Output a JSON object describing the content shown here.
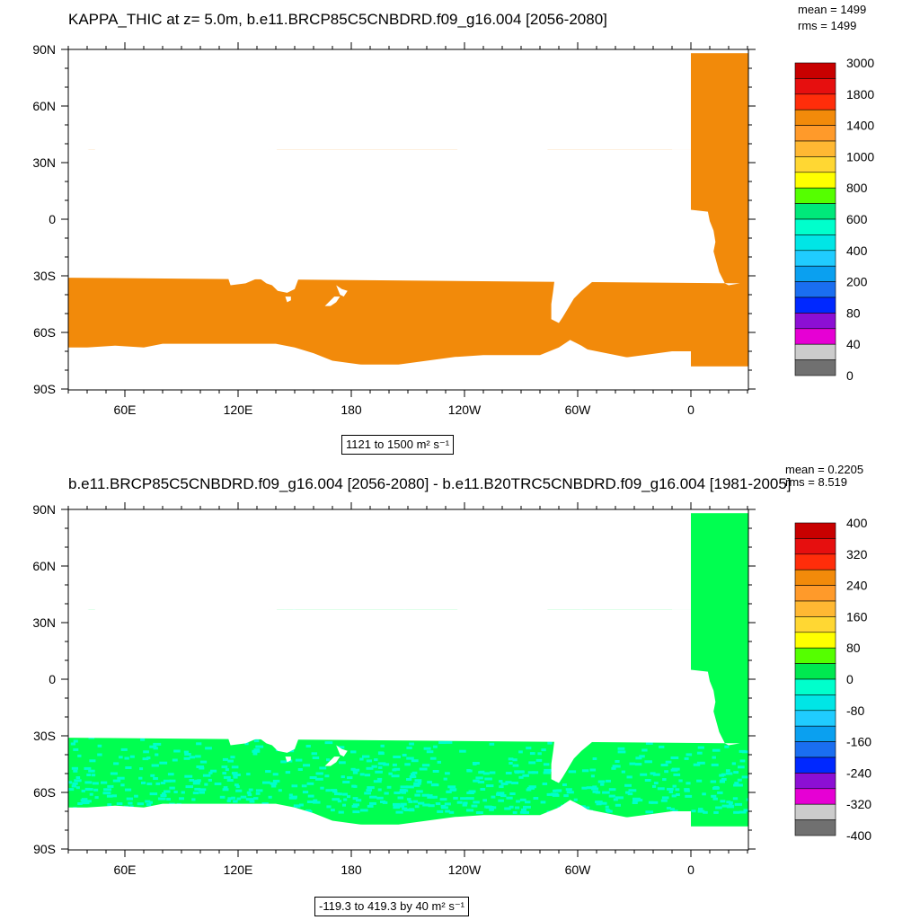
{
  "panels": [
    {
      "id": "top",
      "title": "KAPPA_THIC at z=   5.0m, b.e11.BRCP85C5CNBDRD.f09_g16.004 [2056-2080]",
      "mean_text": "mean = 1499",
      "rms_text": "rms = 1499",
      "range_text": "1121 to 1500",
      "units_text": "m² s⁻¹",
      "ocean_color": "#f28a0a",
      "colorbar": {
        "labels": [
          "3000",
          "1800",
          "1400",
          "1000",
          "800",
          "600",
          "400",
          "200",
          "80",
          "40",
          "0"
        ],
        "colors": [
          "#c80000",
          "#e60f0f",
          "#ff2d0a",
          "#f28a0a",
          "#ff9a2a",
          "#ffb833",
          "#ffd733",
          "#ffff00",
          "#55ff00",
          "#00e87a",
          "#00ffcc",
          "#00e6e6",
          "#20ccff",
          "#0aa0f0",
          "#1a6ef0",
          "#0028ff",
          "#8c0fd4",
          "#e600d4",
          "#cccccc",
          "#707070"
        ]
      }
    },
    {
      "id": "bottom",
      "title": "b.e11.BRCP85C5CNBDRD.f09_g16.004 [2056-2080] - b.e11.B20TRC5CNBDRD.f09_g16.004 [1981-2005]",
      "mean_text": "mean = 0.2205",
      "rms_text": "rms = 8.519",
      "range_text": "-119.3 to 419.3 by 40",
      "units_text": "m² s⁻¹",
      "ocean_color": "#00ff50",
      "colorbar": {
        "labels": [
          "400",
          "320",
          "240",
          "160",
          "80",
          "0",
          "-80",
          "-160",
          "-240",
          "-320",
          "-400"
        ],
        "colors": [
          "#c80000",
          "#e60f0f",
          "#ff2d0a",
          "#f28a0a",
          "#ff9a2a",
          "#ffb833",
          "#ffd733",
          "#ffff00",
          "#55ff00",
          "#00e850",
          "#00ffcc",
          "#00e6e6",
          "#20ccff",
          "#0aa0f0",
          "#1a6ef0",
          "#0028ff",
          "#8c0fd4",
          "#e600d4",
          "#cccccc",
          "#707070"
        ]
      }
    }
  ],
  "axes": {
    "lat_labels": [
      "90N",
      "60N",
      "30N",
      "0",
      "30S",
      "60S",
      "90S"
    ],
    "lon_labels": [
      "60E",
      "120E",
      "180",
      "120W",
      "60W",
      "0"
    ]
  }
}
